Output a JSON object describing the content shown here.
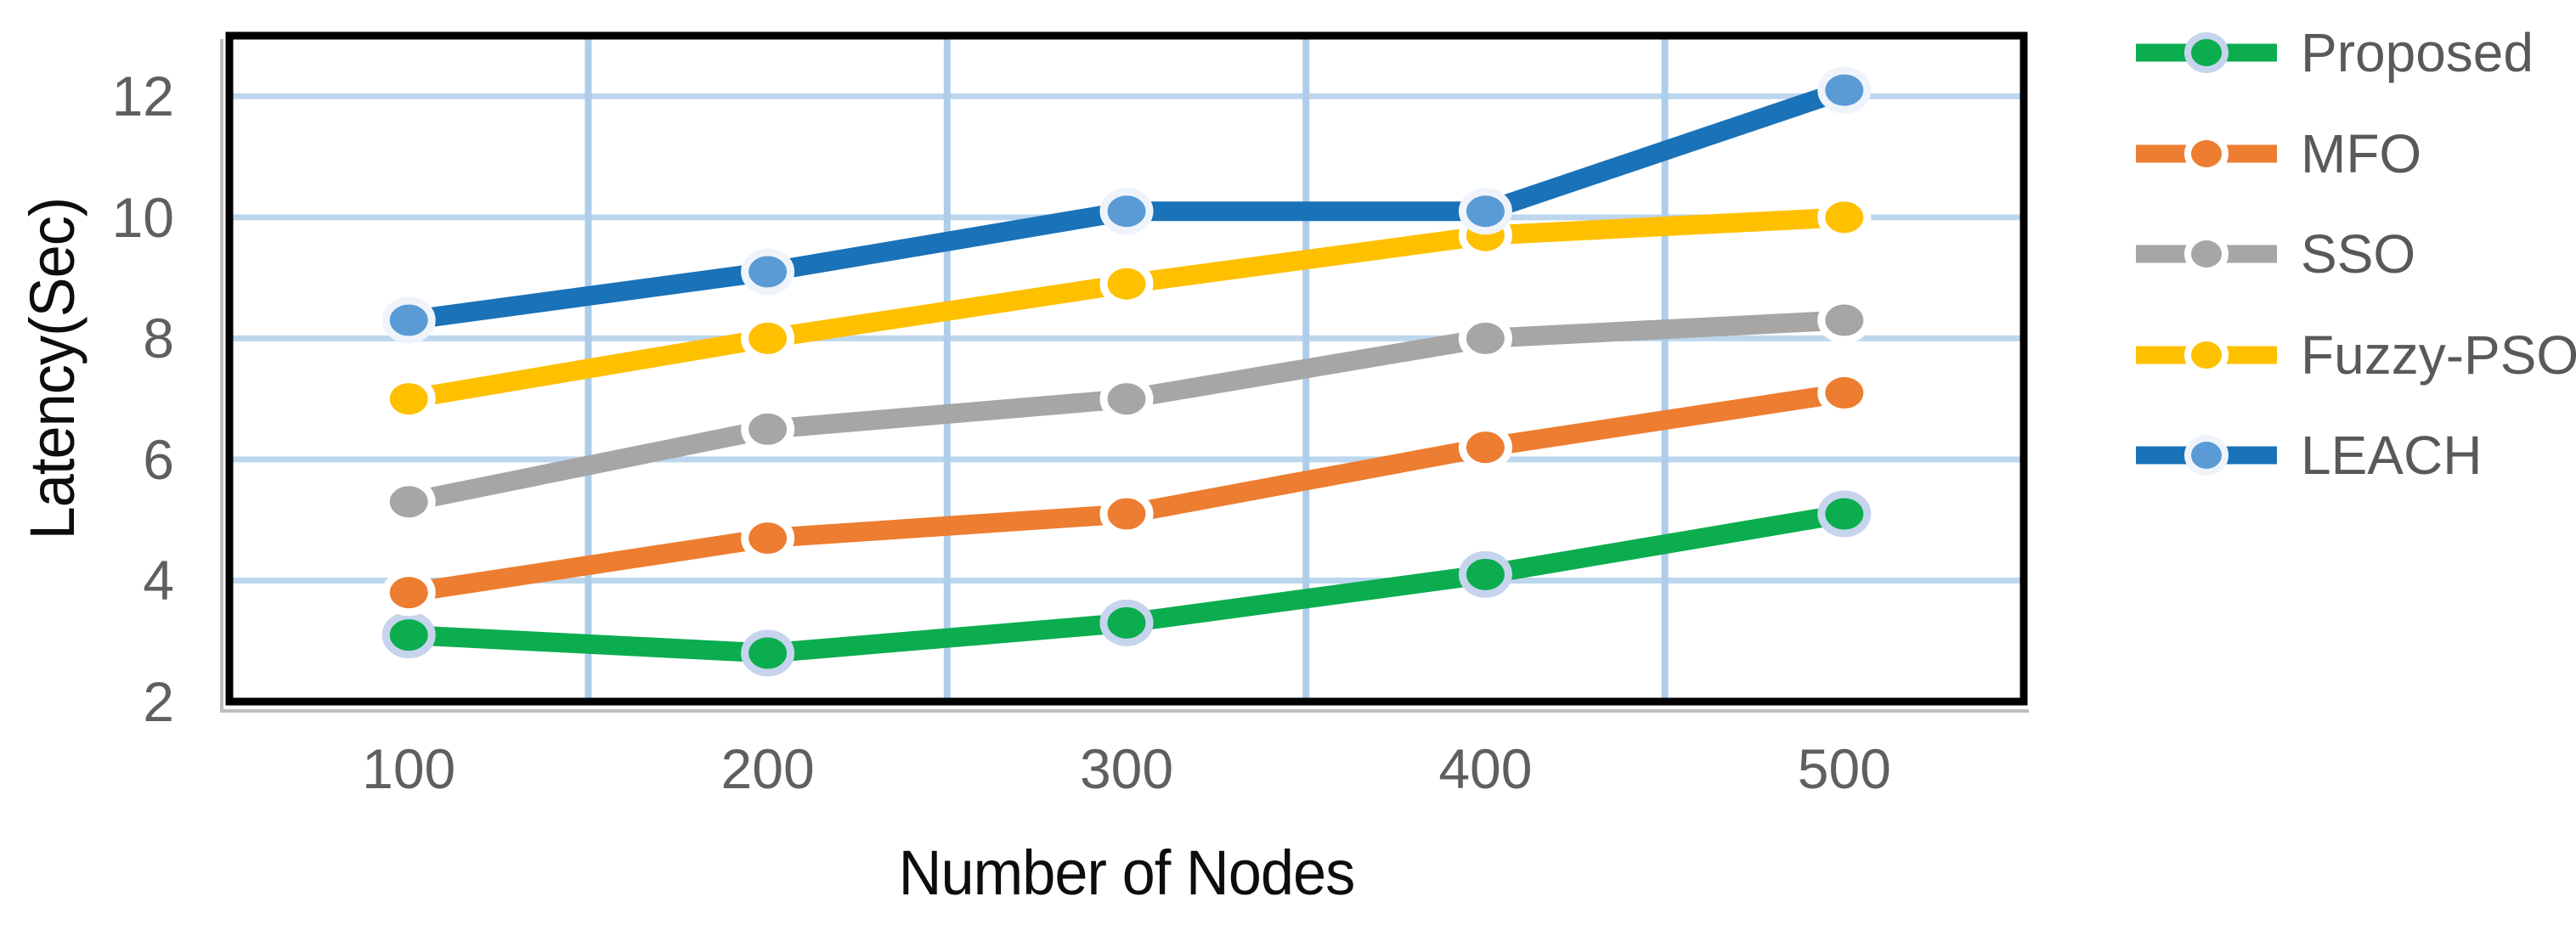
{
  "chart_data": {
    "type": "line",
    "title": "",
    "xlabel": "Number of Nodes",
    "ylabel": "Latency(Sec)",
    "categories": [
      "100",
      "200",
      "300",
      "400",
      "500"
    ],
    "yticks": [
      2,
      4,
      6,
      8,
      10,
      12
    ],
    "ylim": [
      2,
      13
    ],
    "grid": true,
    "legend_position": "right",
    "colors": {
      "h_gridline": "#BCD6EE",
      "v_gridline": "#AECDEA",
      "plot_border": "#000000",
      "border_shadow": "#BDBDBD",
      "tick_label": "#5f5f5f",
      "legend_label": "#595959",
      "axis_title": "#0d0d0d"
    },
    "series": [
      {
        "name": "Proposed",
        "color": "#0BAD4F",
        "marker_color": "#0BAD4F",
        "marker_ring": "#C7D4ED",
        "values": [
          3.1,
          2.8,
          3.3,
          4.1,
          5.1
        ]
      },
      {
        "name": "MFO",
        "color": "#ED7D31",
        "marker_color": "#ED7D31",
        "marker_ring": "#FFFFFF",
        "values": [
          3.8,
          4.7,
          5.1,
          6.2,
          7.1
        ]
      },
      {
        "name": "SSO",
        "color": "#A6A6A6",
        "marker_color": "#A6A6A6",
        "marker_ring": "#FFFFFF",
        "values": [
          5.3,
          6.5,
          7.0,
          8.0,
          8.3
        ]
      },
      {
        "name": "Fuzzy-PSO",
        "color": "#FFC000",
        "marker_color": "#FFC000",
        "marker_ring": "#FFFFFF",
        "values": [
          7.0,
          8.0,
          8.9,
          9.7,
          10.0
        ]
      },
      {
        "name": "LEACH",
        "color": "#1A72B8",
        "marker_color": "#5B9BD5",
        "marker_ring": "#EFF4FB",
        "values": [
          8.3,
          9.1,
          10.1,
          10.1,
          12.1
        ]
      }
    ]
  }
}
